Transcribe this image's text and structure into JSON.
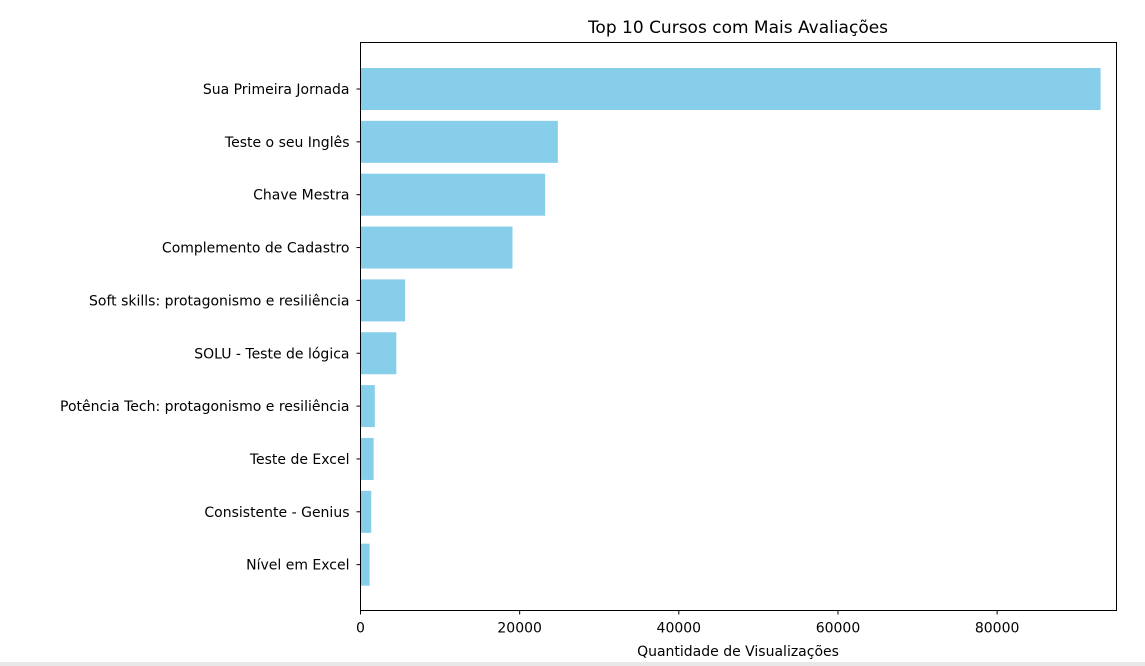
{
  "chart_data": {
    "type": "bar",
    "orientation": "horizontal",
    "title": "Top 10 Cursos com Mais Avaliações",
    "xlabel": "Quantidade de Visualizações",
    "ylabel": "",
    "xlim": [
      0,
      95000
    ],
    "xticks": [
      0,
      20000,
      40000,
      60000,
      80000
    ],
    "xtick_labels": [
      "0",
      "20000",
      "40000",
      "60000",
      "80000"
    ],
    "grid": false,
    "bar_color": "#87ceeb",
    "categories": [
      "Sua Primeira Jornada",
      "Teste o seu Inglês",
      "Chave Mestra",
      "Complemento de Cadastro",
      "Soft skills: protagonismo e resiliência",
      "SOLU - Teste de lógica",
      "Potência Tech: protagonismo e resiliência",
      "Teste de Excel",
      "Consistente - Genius",
      "Nível em Excel"
    ],
    "values": [
      93000,
      24800,
      23200,
      19100,
      5600,
      4500,
      1800,
      1650,
      1350,
      1150
    ]
  }
}
